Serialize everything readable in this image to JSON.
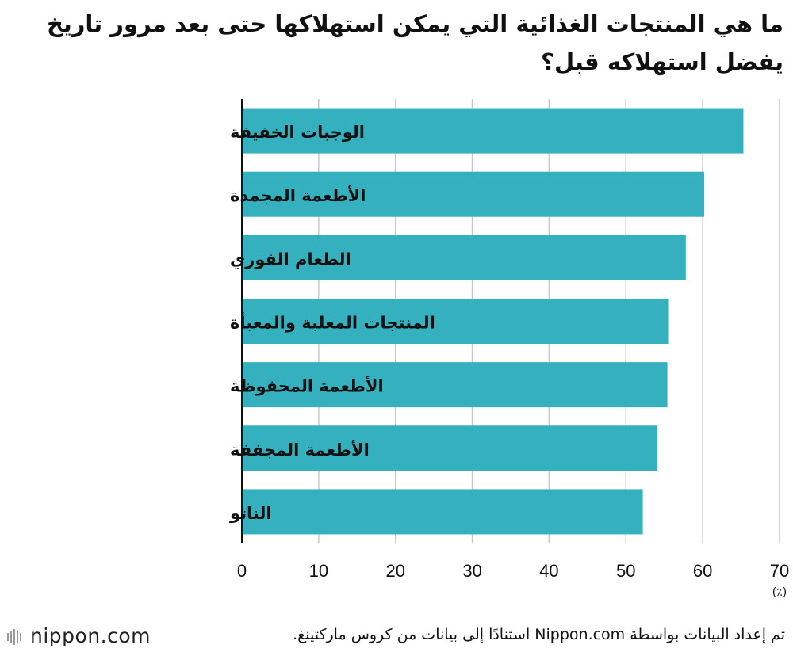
{
  "title": "ما هي المنتجات الغذائية التي يمكن استهلاكها حتى بعد مرور تاريخ يفضل استهلاكه قبل؟",
  "source": "تم إعداد البيانات بواسطة Nippon.com استنادًا إلى بيانات من كروس ماركتينغ.",
  "logo": {
    "text": "nippon.com",
    "icon": "nippon-logo-icon"
  },
  "chart_data": {
    "type": "bar",
    "orientation": "horizontal",
    "categories": [
      "الوجبات الخفيفة",
      "الأطعمة المجمدة",
      "الطعام الفوري",
      "المنتجات المعلبة والمعبأة",
      "الأطعمة المحفوظة",
      "الأطعمة المجففة",
      "الناتو"
    ],
    "values": [
      65.3,
      60.2,
      57.8,
      55.6,
      55.4,
      54.1,
      52.2
    ],
    "xlim": [
      0,
      70
    ],
    "xticks": [
      0,
      10,
      20,
      30,
      40,
      50,
      60,
      70
    ],
    "unit_label": "(٪)",
    "bar_color": "#35b0bf",
    "grid": true
  }
}
